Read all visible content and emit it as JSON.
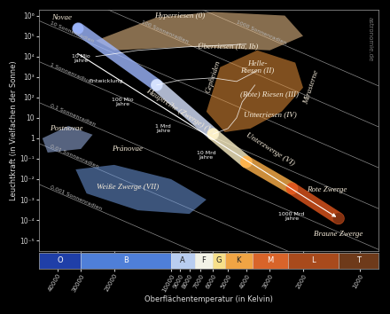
{
  "chart_data": {
    "type": "hr_diagram",
    "xlabel": "Oberflächentemperatur (in Kelvin)",
    "ylabel": "Leuchtkraft (in Vielfachen der Sonne)",
    "log": true,
    "xlim": [
      50000,
      800
    ],
    "ylim": [
      3e-06,
      2000000
    ],
    "xticks": [
      40000,
      30000,
      20000,
      10000,
      9000,
      8000,
      7000,
      6000,
      5000,
      4000,
      3000,
      2000,
      1000
    ],
    "yticks": [
      {
        "value": 1000000,
        "label": "10⁶"
      },
      {
        "value": 100000,
        "label": "10⁵"
      },
      {
        "value": 10000,
        "label": "10⁴"
      },
      {
        "value": 1000,
        "label": "10³"
      },
      {
        "value": 100,
        "label": "10²"
      },
      10,
      1,
      {
        "value": 0.1,
        "label": "10⁻¹"
      },
      {
        "value": 0.01,
        "label": "10⁻²"
      },
      {
        "value": 0.001,
        "label": "10⁻³"
      },
      {
        "value": 0.0001,
        "label": "10⁻⁴"
      },
      {
        "value": 1e-05,
        "label": "10⁻⁵"
      }
    ],
    "spectral_classes": [
      {
        "label": "O",
        "from": 50000,
        "to": 30000,
        "color": "#1f3fa8"
      },
      {
        "label": "B",
        "from": 30000,
        "to": 10000,
        "color": "#4f7fd8"
      },
      {
        "label": "A",
        "from": 10000,
        "to": 7500,
        "color": "#b8cdf0"
      },
      {
        "label": "F",
        "from": 7500,
        "to": 6000,
        "color": "#f2f2e6"
      },
      {
        "label": "G",
        "from": 6000,
        "to": 5200,
        "color": "#f7e08a"
      },
      {
        "label": "K",
        "from": 5200,
        "to": 3700,
        "color": "#f0a444"
      },
      {
        "label": "M",
        "from": 3700,
        "to": 2400,
        "color": "#d8642a"
      },
      {
        "label": "L",
        "from": 2400,
        "to": 1300,
        "color": "#a84a1c"
      },
      {
        "label": "T",
        "from": 1300,
        "to": 800,
        "color": "#6e3a1a"
      }
    ],
    "main_sequence": {
      "temperature": [
        31000,
        11900,
        6000,
        4000,
        2290,
        1300
      ],
      "luminosity": [
        230000,
        400,
        1.6,
        0.07,
        0.0035,
        0.00012
      ],
      "colors": [
        "#9fb8ff",
        "#d8e4ff",
        "#fff3c8",
        "#ffb24a",
        "#e0561e",
        "#7a2e10"
      ]
    },
    "regions": [
      {
        "color": "#f6c890",
        "temperature": [
          25000,
          12000,
          6000,
          2500,
          2000,
          3000,
          8000,
          20000
        ],
        "luminosity": [
          60000,
          800000,
          1500000,
          1000000,
          100000,
          20000,
          30000,
          20000
        ]
      },
      {
        "color": "#e8923a",
        "temperature": [
          6500,
          5500,
          3500,
          2200,
          2000,
          2600,
          3800,
          5200
        ],
        "luminosity": [
          20,
          3000,
          20000,
          5000,
          300,
          20,
          3,
          2
        ]
      },
      {
        "color": "#6f9be0",
        "temperature": [
          32000,
          20000,
          10000,
          6500,
          8000,
          15000,
          28000
        ],
        "luminosity": [
          0.03,
          0.05,
          0.01,
          0.001,
          0.0002,
          0.0003,
          0.002
        ]
      },
      {
        "color": "#9db6e8",
        "temperature": [
          48000,
          35000,
          26000,
          30000,
          45000
        ],
        "luminosity": [
          1,
          4,
          1.5,
          0.3,
          0.2
        ]
      }
    ],
    "tracks": [
      {
        "temperature": [
          11900,
          9000,
          6000,
          4500,
          3500
        ],
        "luminosity": [
          400,
          700,
          900,
          600,
          2000
        ]
      },
      {
        "temperature": [
          6000,
          5000,
          4500,
          4200,
          3600
        ],
        "luminosity": [
          1.6,
          3,
          10,
          60,
          400
        ]
      },
      {
        "temperature": [
          25000,
          15000,
          8000,
          4000
        ],
        "luminosity": [
          10000,
          20000,
          30000,
          40000
        ]
      }
    ],
    "evolution_arrow": {
      "temperature": [
        32000,
        1300
      ],
      "luminosity": [
        16000,
        0.00012
      ]
    },
    "radius_lines": [
      {
        "label": "1000 Sonnenradien",
        "temperature": [
          50000,
          800
        ],
        "luminosity": [
          5600000000.0,
          367
        ]
      },
      {
        "label": "100 Sonnenradien",
        "temperature": [
          50000,
          800
        ],
        "luminosity": [
          56000000.0,
          3.67
        ]
      },
      {
        "label": "10 Sonnenradien",
        "temperature": [
          50000,
          800
        ],
        "luminosity": [
          560000,
          0.0367
        ]
      },
      {
        "label": "1 Sonnenradius",
        "temperature": [
          50000,
          800
        ],
        "luminosity": [
          5600,
          0.000367
        ]
      },
      {
        "label": "0,1 Sonnenradien",
        "temperature": [
          50000,
          800
        ],
        "luminosity": [
          56,
          3.67e-06
        ]
      },
      {
        "label": "0,01 Sonnenradien",
        "temperature": [
          50000,
          800
        ],
        "luminosity": [
          0.56,
          3.67e-08
        ]
      },
      {
        "label": "0,001 Sonnenradien",
        "temperature": [
          50000,
          800
        ],
        "luminosity": [
          0.0056,
          3.67e-10
        ]
      }
    ],
    "region_labels": [
      {
        "text": "Novae",
        "temperature": 38000,
        "luminosity": 800000
      },
      {
        "text": "Hyperriesen (0)",
        "temperature": 9000,
        "luminosity": 1000000
      },
      {
        "text": "Überriesen (Ia, Ib)",
        "temperature": 5000,
        "luminosity": 30000
      },
      {
        "text": "Helle-\nRiesen (II)",
        "temperature": 3500,
        "luminosity": 3000
      },
      {
        "text": "(Rote) Riesen (III)",
        "temperature": 3000,
        "luminosity": 150
      },
      {
        "text": "Unterriesen (IV)",
        "temperature": 3000,
        "luminosity": 15
      },
      {
        "text": "Postnovae",
        "temperature": 36000,
        "luminosity": 3
      },
      {
        "text": "Pränovae",
        "temperature": 17000,
        "luminosity": 0.3
      },
      {
        "text": "Weiße Zwerge (VII)",
        "temperature": 17000,
        "luminosity": 0.004
      },
      {
        "text": "Rote Zwerge",
        "temperature": 1500,
        "luminosity": 0.003
      },
      {
        "text": "Braune Zwerge",
        "temperature": 1300,
        "luminosity": 2e-05
      }
    ],
    "main_sequence_labels": [
      {
        "text": "Hauptreihe (Zwerge) (V)",
        "temperature": 9000,
        "luminosity": 20
      },
      {
        "text": "Unterzwerge (VI)",
        "temperature": 3000,
        "luminosity": 0.3
      }
    ],
    "vertical_labels": [
      {
        "text": "Cepheiden",
        "temperature": 6000,
        "luminosity": 1000
      },
      {
        "text": "Mirasterne",
        "temperature": 1800,
        "luminosity": 300
      }
    ],
    "small_labels": [
      {
        "text": "10 Mio\nJahre",
        "temperature": 30000,
        "luminosity": 8000
      },
      {
        "text": "Entwicklung",
        "temperature": 22000,
        "luminosity": 600
      },
      {
        "text": "100 Mio\nJahre",
        "temperature": 18000,
        "luminosity": 60
      },
      {
        "text": "1 Mrd\nJahre",
        "temperature": 11000,
        "luminosity": 3
      },
      {
        "text": "10 Mrd\nJahre",
        "temperature": 6500,
        "luminosity": 0.15
      },
      {
        "text": "1000 Mrd\nJahre",
        "temperature": 2300,
        "luminosity": 0.00015
      }
    ],
    "credit": "astronomie.de"
  }
}
